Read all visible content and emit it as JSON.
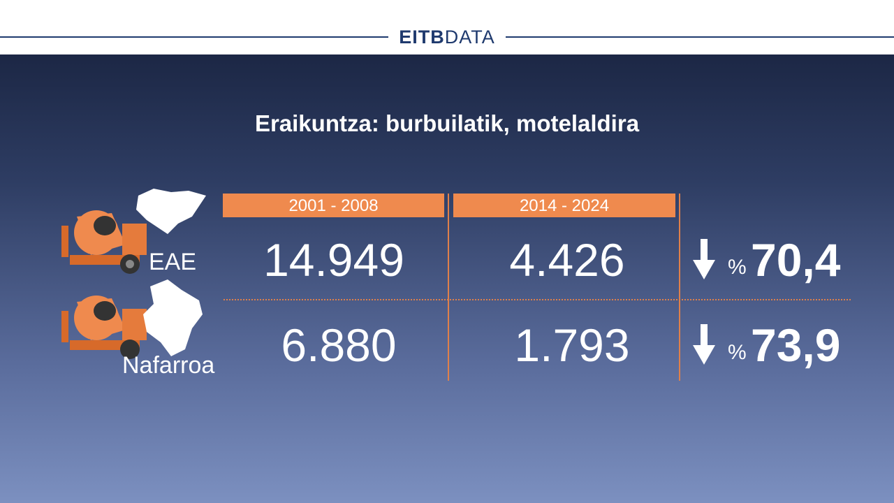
{
  "header": {
    "brand_bold": "EITB",
    "brand_light": "DATA"
  },
  "title": "Eraikuntza: burbuilatik, motelaldira",
  "table": {
    "columns": [
      "2001 - 2008",
      "2014 - 2024"
    ],
    "rows": [
      {
        "region": "EAE",
        "values": [
          "14.949",
          "4.426"
        ],
        "change_unit": "%",
        "change": "70,4"
      },
      {
        "region": "Nafarroa",
        "values": [
          "6.880",
          "1.793"
        ],
        "change_unit": "%",
        "change": "73,9"
      }
    ]
  }
}
